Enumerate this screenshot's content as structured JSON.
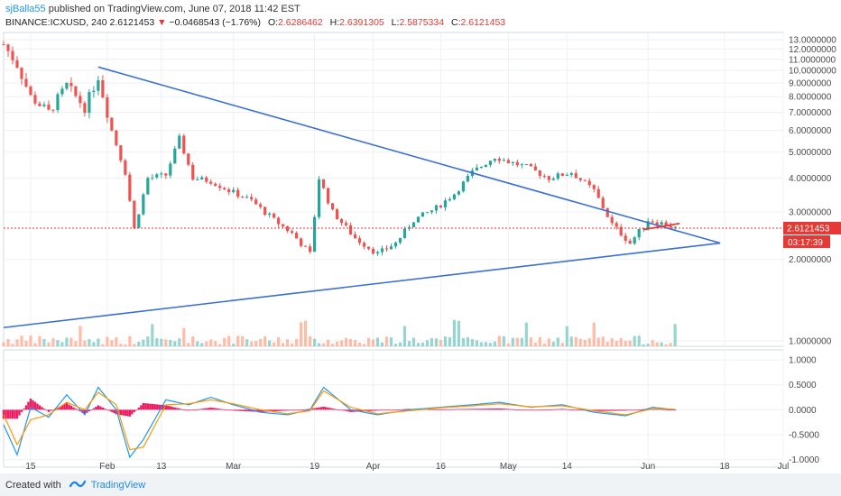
{
  "header": {
    "author": "sjBalla55",
    "published_text": "published on TradingView.com, June 07, 2018 11:42 EST",
    "symbol": "BINANCE:ICXUSD, 240",
    "last_price": "2.6121453",
    "change_arrow": "▼",
    "change": "−0.0468543 (−1.76%)",
    "open_label": "O:",
    "open": "2.6286462",
    "high_label": "H:",
    "high": "2.6391305",
    "low_label": "L:",
    "low": "2.5875334",
    "close_label": "C:",
    "close": "2.6121453"
  },
  "footer": {
    "created_with": "Created with",
    "brand": "TradingView"
  },
  "colors": {
    "up": "#26a69a",
    "down": "#ef5350",
    "trendline": "#3b6fd4",
    "price_line": "#e53935",
    "macd": "#2196f3",
    "signal": "#ff9800",
    "hist": "#e91e63",
    "volume_up": "#80cbc4",
    "volume_down": "#ffab91",
    "grid": "#eef0f3"
  },
  "chart_data": [
    {
      "type": "candlestick",
      "symbol": "BINANCE:ICXUSD",
      "timeframe": "240",
      "y_scale": "log",
      "ylim": [
        1.0,
        13.0
      ],
      "y_ticks": [
        "13.0000000",
        "12.0000000",
        "11.0000000",
        "10.0000000",
        "9.0000000",
        "8.0000000",
        "7.0000000",
        "6.0000000",
        "5.0000000",
        "4.0000000",
        "3.0000000",
        "2.0000000",
        "1.0000000"
      ],
      "x_ticks": [
        "15",
        "Feb",
        "13",
        "Mar",
        "19",
        "Apr",
        "16",
        "May",
        "14",
        "Jun",
        "18",
        "Jul"
      ],
      "current_price_label": "2.6121453",
      "countdown_label": "03:17:39",
      "series": [
        {
          "name": "Price (approx. close)",
          "x": [
            "2018-01-09",
            "2018-01-12",
            "2018-01-15",
            "2018-01-19",
            "2018-01-23",
            "2018-01-27",
            "2018-01-30",
            "2018-02-02",
            "2018-02-05",
            "2018-02-07",
            "2018-02-10",
            "2018-02-14",
            "2018-02-17",
            "2018-02-20",
            "2018-02-24",
            "2018-02-28",
            "2018-03-05",
            "2018-03-10",
            "2018-03-14",
            "2018-03-18",
            "2018-03-20",
            "2018-03-23",
            "2018-03-28",
            "2018-04-02",
            "2018-04-06",
            "2018-04-10",
            "2018-04-15",
            "2018-04-19",
            "2018-04-23",
            "2018-04-28",
            "2018-05-01",
            "2018-05-05",
            "2018-05-10",
            "2018-05-15",
            "2018-05-20",
            "2018-05-24",
            "2018-05-28",
            "2018-06-01",
            "2018-06-05",
            "2018-06-07"
          ],
          "values": [
            12.5,
            10.5,
            8.0,
            7.0,
            8.8,
            7.3,
            9.5,
            6.0,
            4.2,
            2.6,
            4.0,
            4.1,
            5.6,
            4.0,
            3.9,
            3.6,
            3.3,
            2.8,
            2.5,
            2.1,
            4.0,
            3.0,
            2.4,
            2.1,
            2.3,
            2.8,
            3.1,
            3.5,
            4.2,
            4.8,
            4.6,
            4.4,
            4.0,
            4.2,
            3.6,
            2.7,
            2.3,
            2.8,
            2.7,
            2.61
          ]
        },
        {
          "name": "Descending trendline",
          "x": [
            "2018-01-30",
            "2018-06-17"
          ],
          "values": [
            10.3,
            2.3
          ]
        },
        {
          "name": "Ascending support",
          "x": [
            "2018-01-09",
            "2018-06-17"
          ],
          "values": [
            1.12,
            2.3
          ]
        }
      ]
    },
    {
      "type": "line",
      "indicator": "MACD",
      "ylim": [
        -1.15,
        1.2
      ],
      "y_ticks": [
        "1.0000",
        "0.5000",
        "0.0000",
        "-0.5000",
        "-1.0000"
      ],
      "series": [
        {
          "name": "MACD",
          "x": [
            "2018-01-09",
            "2018-01-12",
            "2018-01-15",
            "2018-01-19",
            "2018-01-23",
            "2018-01-27",
            "2018-01-30",
            "2018-02-03",
            "2018-02-06",
            "2018-02-09",
            "2018-02-14",
            "2018-02-19",
            "2018-02-24",
            "2018-03-01",
            "2018-03-07",
            "2018-03-13",
            "2018-03-18",
            "2018-03-21",
            "2018-03-27",
            "2018-04-02",
            "2018-04-09",
            "2018-04-16",
            "2018-04-23",
            "2018-04-29",
            "2018-05-06",
            "2018-05-13",
            "2018-05-20",
            "2018-05-27",
            "2018-06-02",
            "2018-06-07"
          ],
          "values": [
            -0.3,
            -0.9,
            0.05,
            -0.15,
            0.3,
            -0.1,
            0.45,
            0.0,
            -0.95,
            -0.6,
            0.2,
            0.1,
            0.25,
            0.1,
            -0.05,
            -0.1,
            0.0,
            0.45,
            0.0,
            -0.1,
            0.0,
            0.05,
            0.1,
            0.15,
            0.05,
            0.1,
            -0.05,
            -0.12,
            0.05,
            0.0
          ]
        },
        {
          "name": "Signal",
          "x": [
            "2018-01-09",
            "2018-01-12",
            "2018-01-15",
            "2018-01-19",
            "2018-01-23",
            "2018-01-27",
            "2018-01-30",
            "2018-02-03",
            "2018-02-06",
            "2018-02-09",
            "2018-02-14",
            "2018-02-19",
            "2018-02-24",
            "2018-03-01",
            "2018-03-07",
            "2018-03-13",
            "2018-03-18",
            "2018-03-21",
            "2018-03-27",
            "2018-04-02",
            "2018-04-09",
            "2018-04-16",
            "2018-04-23",
            "2018-04-29",
            "2018-05-06",
            "2018-05-13",
            "2018-05-20",
            "2018-05-27",
            "2018-06-02",
            "2018-06-07"
          ],
          "values": [
            -0.1,
            -0.7,
            -0.2,
            -0.1,
            0.15,
            0.0,
            0.35,
            0.1,
            -0.8,
            -0.75,
            0.1,
            0.12,
            0.2,
            0.12,
            0.0,
            -0.08,
            -0.02,
            0.38,
            0.05,
            -0.08,
            -0.02,
            0.04,
            0.08,
            0.12,
            0.06,
            0.08,
            -0.02,
            -0.1,
            0.02,
            0.01
          ]
        }
      ]
    }
  ]
}
